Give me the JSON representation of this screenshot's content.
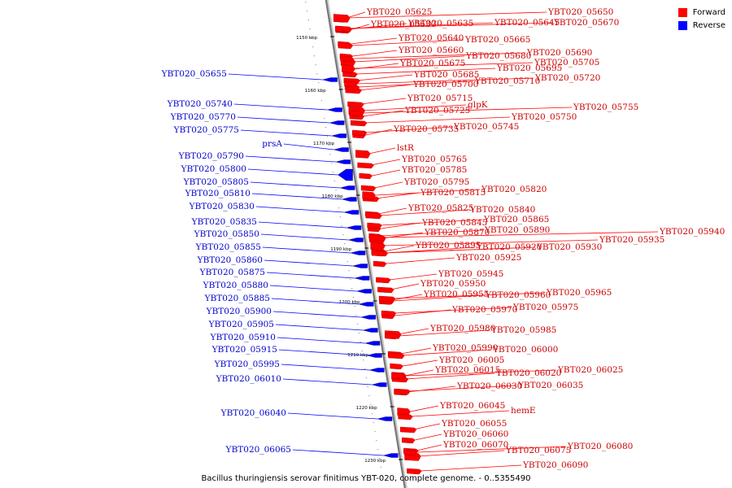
{
  "legend": {
    "forward": {
      "label": "Forward",
      "color": "#ff0000"
    },
    "reverse": {
      "label": "Reverse",
      "color": "#0000ff"
    }
  },
  "caption": "Bacillus thuringiensis serovar finitimus YBT-020, complete genome. - 0..5355490",
  "axis": {
    "ticks": [
      "1150 kbp",
      "1160 kbp",
      "1170 kbp",
      "1180 kbp",
      "1190 kbp",
      "1200 kbp",
      "1210 kbp",
      "1220 kbp",
      "1230 kbp"
    ]
  },
  "forward_labels": [
    "YBT020_05625",
    "YBT020_05630",
    "YBT020_05635",
    "YBT020_05640",
    "YBT020_05645",
    "YBT020_05650",
    "YBT020_05660",
    "YBT020_05665",
    "YBT020_05670",
    "YBT020_05675",
    "YBT020_05680",
    "YBT020_05685",
    "YBT020_05690",
    "YBT020_05695",
    "YBT020_05700",
    "YBT020_05705",
    "YBT020_05710",
    "YBT020_05715",
    "YBT020_05720",
    "YBT020_05725",
    "glpK",
    "YBT020_05735",
    "YBT020_05745",
    "YBT020_05750",
    "YBT020_05755",
    "lstR",
    "YBT020_05765",
    "YBT020_05785",
    "YBT020_05795",
    "YBT020_05815",
    "YBT020_05820",
    "YBT020_05825",
    "YBT020_05840",
    "YBT020_05845",
    "YBT020_05865",
    "YBT020_05870",
    "YBT020_05890",
    "YBT020_05895",
    "YBT020_05920",
    "YBT020_05930",
    "YBT020_05935",
    "YBT020_05940",
    "YBT020_05925",
    "YBT020_05945",
    "YBT020_05950",
    "YBT020_05955",
    "YBT020_05960",
    "YBT020_05965",
    "YBT020_05970",
    "YBT020_05975",
    "YBT020_05980",
    "YBT020_05985",
    "YBT020_05990",
    "YBT020_06000",
    "YBT020_06005",
    "YBT020_06015",
    "YBT020_06020",
    "YBT020_06025",
    "YBT020_06030",
    "YBT020_06035",
    "YBT020_06045",
    "hemE",
    "YBT020_06055",
    "YBT020_06060",
    "YBT020_06070",
    "YBT020_06075",
    "YBT020_06080",
    "YBT020_06090"
  ],
  "reverse_labels": [
    "YBT020_05655",
    "YBT020_05740",
    "YBT020_05770",
    "YBT020_05775",
    "prsA",
    "YBT020_05790",
    "YBT020_05800",
    "YBT020_05805",
    "YBT020_05810",
    "YBT020_05830",
    "YBT020_05835",
    "YBT020_05850",
    "YBT020_05855",
    "YBT020_05860",
    "YBT020_05875",
    "YBT020_05880",
    "YBT020_05885",
    "YBT020_05900",
    "YBT020_05905",
    "YBT020_05910",
    "YBT020_05915",
    "YBT020_05995",
    "YBT020_06010",
    "YBT020_06040",
    "YBT020_06065"
  ]
}
